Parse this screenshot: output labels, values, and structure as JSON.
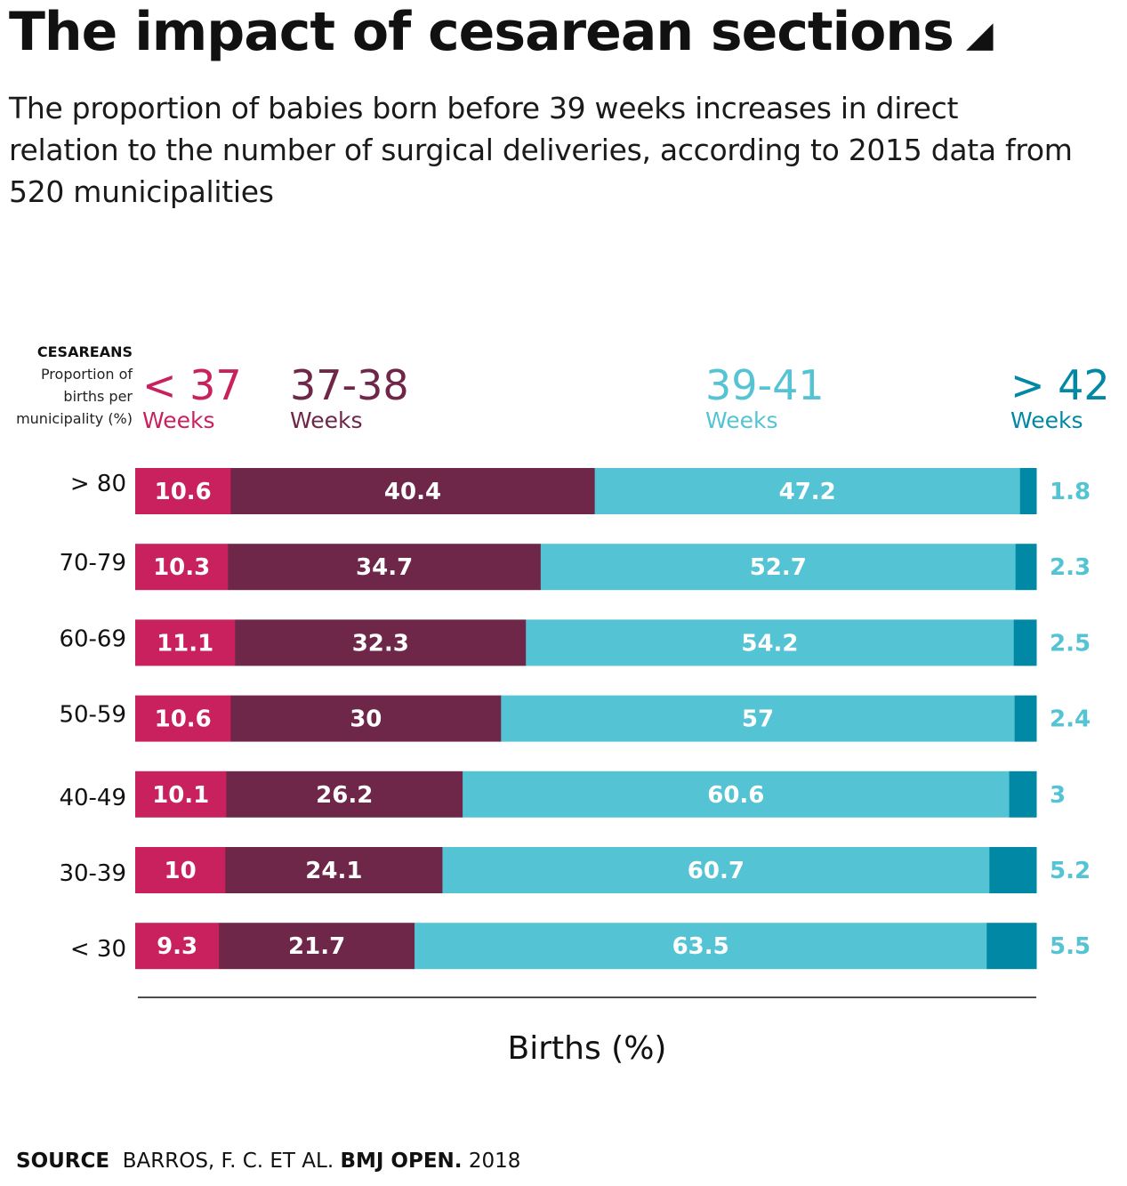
{
  "title": "The impact of cesarean sections",
  "title_mark": "◢",
  "subtitle": "The proportion of babies born before 39 weeks increases in direct relation to the number of surgical deliveries, according to 2015 data from 520 municipalities",
  "category_header": {
    "title": "CESAREANS",
    "line1": "Proportion of",
    "line2": "births per",
    "line3": "municipality (%)"
  },
  "bands": [
    {
      "range": "< 37",
      "unit": "Weeks",
      "color": "#c8215e"
    },
    {
      "range": "37-38",
      "unit": "Weeks",
      "color": "#6e2649"
    },
    {
      "range": "39-41",
      "unit": "Weeks",
      "color": "#54c3d4"
    },
    {
      "range": "> 42",
      "unit": "Weeks",
      "color": "#0088a4"
    }
  ],
  "chart_data": {
    "type": "bar",
    "orientation": "horizontal",
    "stacked": true,
    "categories": [
      "> 80",
      "70-79",
      "60-69",
      "50-59",
      "40-49",
      "30-39",
      "< 30"
    ],
    "series": [
      {
        "name": "< 37 Weeks",
        "values": [
          10.6,
          10.3,
          11.1,
          10.6,
          10.1,
          10,
          9.3
        ]
      },
      {
        "name": "37-38 Weeks",
        "values": [
          40.4,
          34.7,
          32.3,
          30,
          26.2,
          24.1,
          21.7
        ]
      },
      {
        "name": "39-41 Weeks",
        "values": [
          47.2,
          52.7,
          54.2,
          57,
          60.6,
          60.7,
          63.5
        ]
      },
      {
        "name": "> 42 Weeks",
        "values": [
          1.8,
          2.3,
          2.5,
          2.4,
          3,
          5.2,
          5.5
        ]
      }
    ],
    "colors": [
      "#c8215e",
      "#6e2649",
      "#54c3d4",
      "#0088a4"
    ],
    "xlabel": "Births (%)",
    "xlim": [
      0,
      100
    ]
  },
  "source": {
    "label": "SOURCE",
    "authors": "BARROS, F. C. ET AL.",
    "journal": "BMJ OPEN.",
    "year": "2018"
  }
}
